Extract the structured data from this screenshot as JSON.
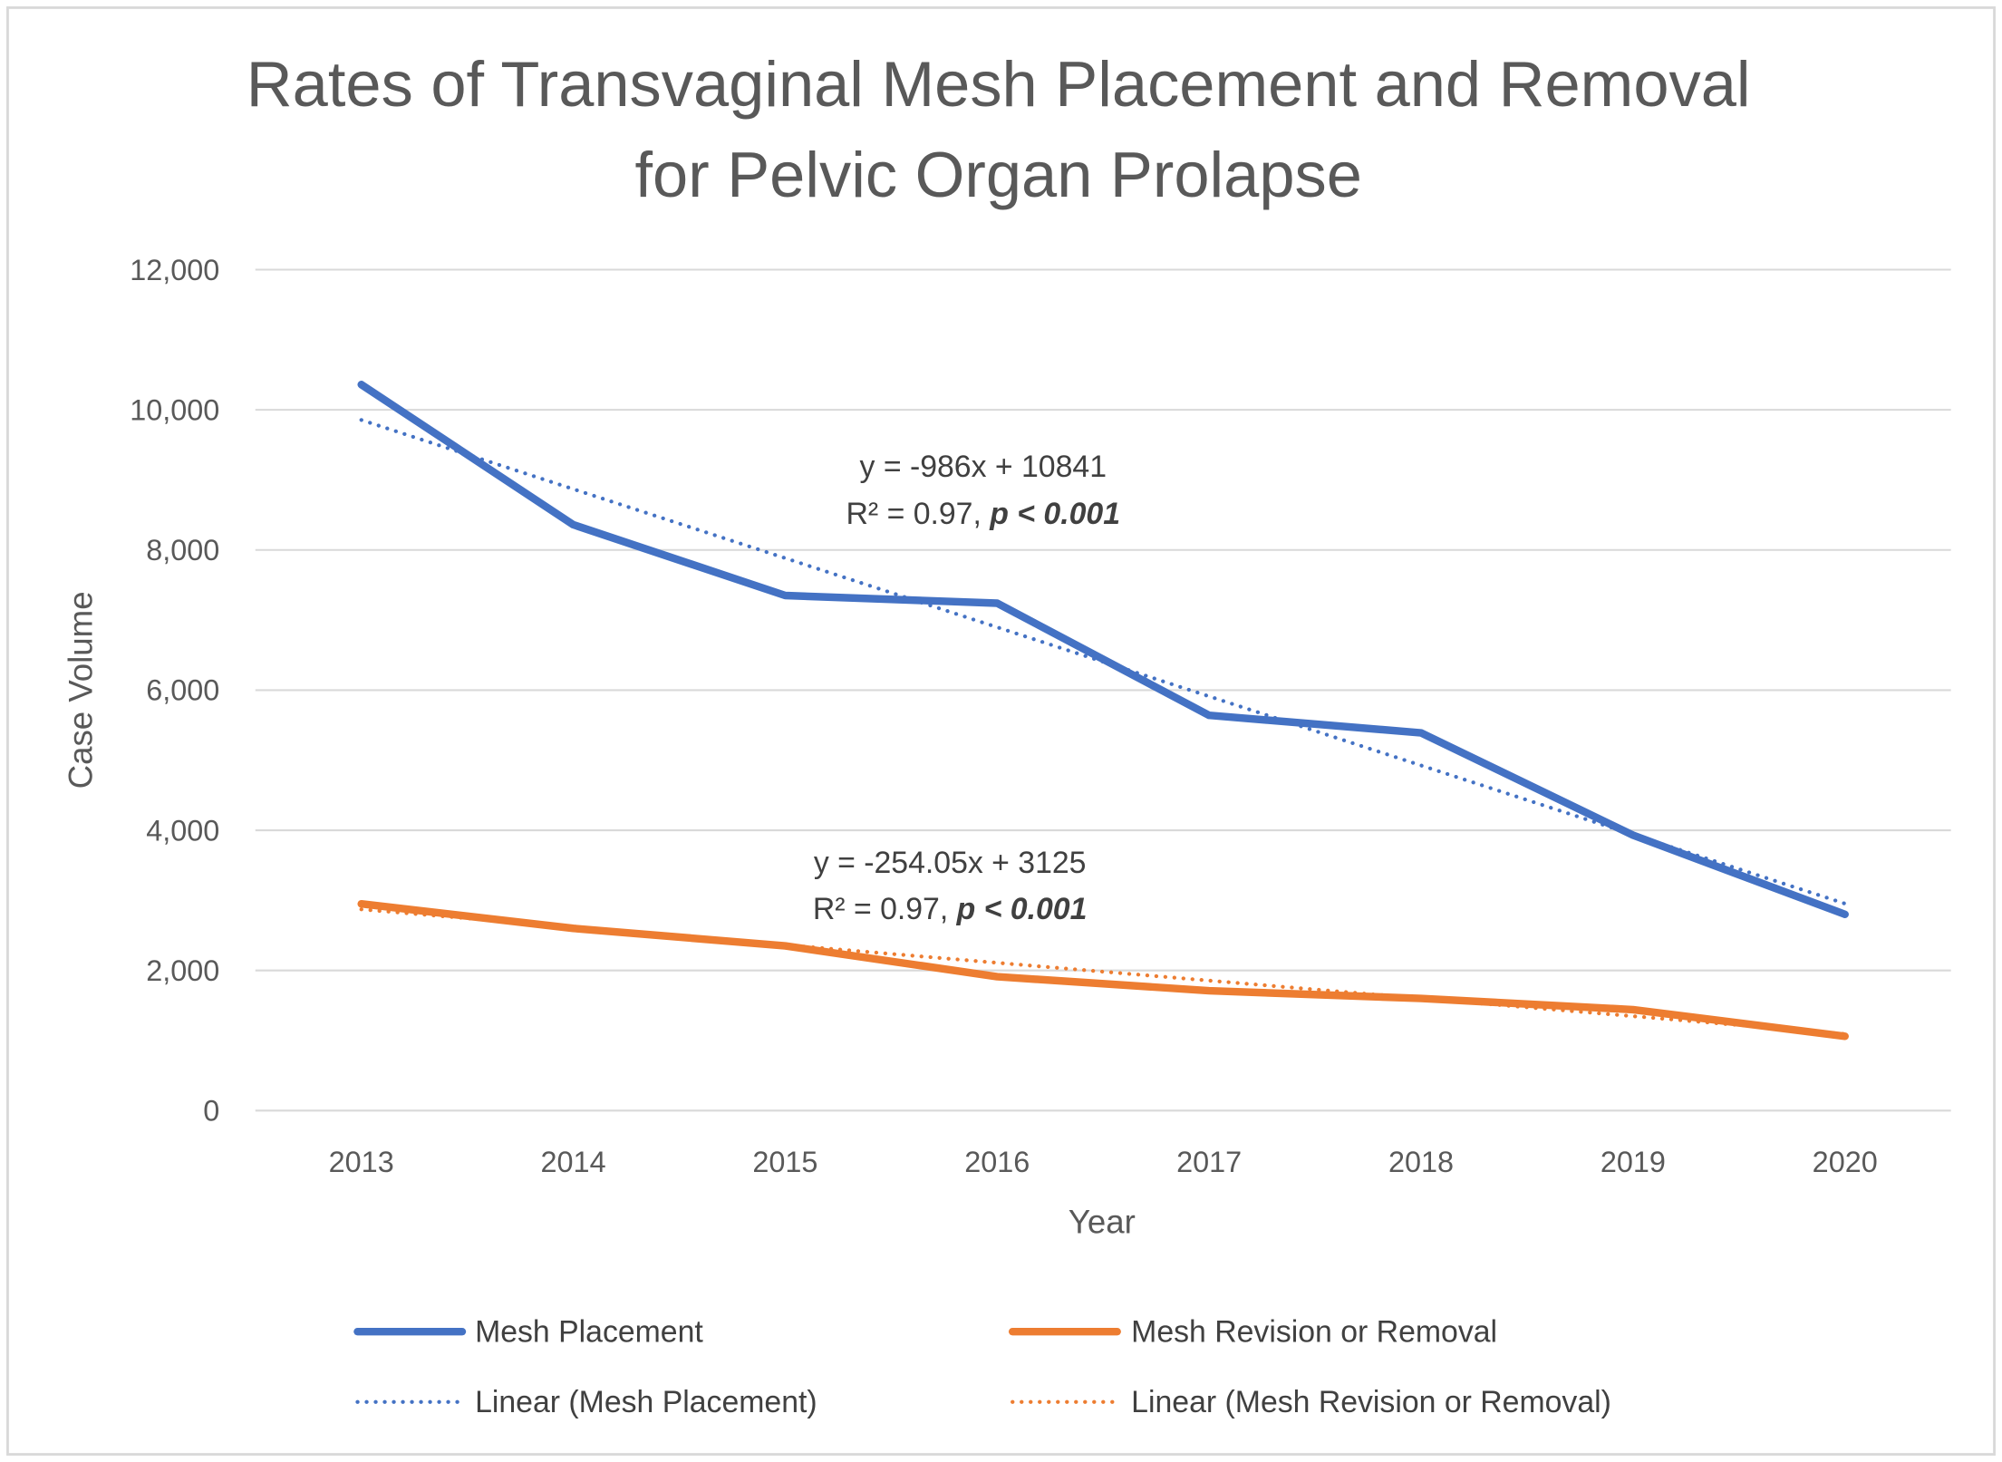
{
  "chart_data": {
    "type": "line",
    "title": [
      "Rates of Transvaginal Mesh Placement and Removal",
      "for Pelvic Organ Prolapse"
    ],
    "xlabel": "Year",
    "ylabel": "Case Volume",
    "categories": [
      "2013",
      "2014",
      "2015",
      "2016",
      "2017",
      "2018",
      "2019",
      "2020"
    ],
    "ylim": [
      0,
      12000
    ],
    "yticks": [
      0,
      2000,
      4000,
      6000,
      8000,
      10000,
      12000
    ],
    "ytick_labels": [
      "0",
      "2,000",
      "4,000",
      "6,000",
      "8,000",
      "10,000",
      "12,000"
    ],
    "grid": true,
    "legend_position": "bottom",
    "series": [
      {
        "name": "Mesh Placement",
        "color": "#4472c4",
        "style": "solid",
        "values": [
          10360,
          8360,
          7350,
          7240,
          5640,
          5390,
          3930,
          2800
        ],
        "trendline": {
          "name": "Linear (Mesh Placement)",
          "slope": -986,
          "intercept": 10841
        }
      },
      {
        "name": "Mesh Revision or Removal",
        "color": "#ed7d31",
        "style": "solid",
        "values": [
          2950,
          2600,
          2350,
          1910,
          1710,
          1600,
          1440,
          1060
        ],
        "trendline": {
          "name": "Linear (Mesh Revision or Removal)",
          "slope": -254.05,
          "intercept": 3125
        }
      }
    ],
    "annotations": [
      {
        "equation": "y = -986x + 10841",
        "r2_prefix": "R² = 0.97, ",
        "p_text": "p < 0.001"
      },
      {
        "equation": "y = -254.05x + 3125",
        "r2_prefix": "R² = 0.97, ",
        "p_text": "p < 0.001"
      }
    ],
    "legend": [
      "Mesh Placement",
      "Mesh Revision or Removal",
      "Linear (Mesh Placement)",
      "Linear (Mesh Revision or Removal)"
    ]
  }
}
